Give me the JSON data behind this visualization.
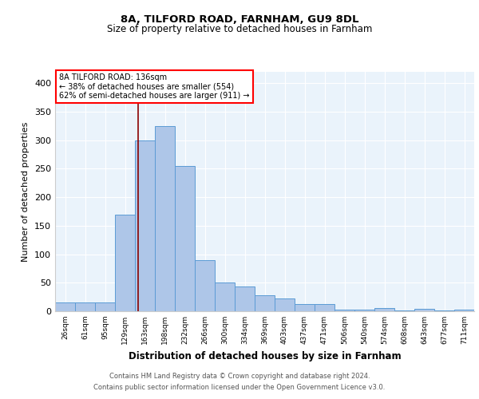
{
  "title1": "8A, TILFORD ROAD, FARNHAM, GU9 8DL",
  "title2": "Size of property relative to detached houses in Farnham",
  "xlabel": "Distribution of detached houses by size in Farnham",
  "ylabel": "Number of detached properties",
  "footnote1": "Contains HM Land Registry data © Crown copyright and database right 2024.",
  "footnote2": "Contains public sector information licensed under the Open Government Licence v3.0.",
  "bar_labels": [
    "26sqm",
    "61sqm",
    "95sqm",
    "129sqm",
    "163sqm",
    "198sqm",
    "232sqm",
    "266sqm",
    "300sqm",
    "334sqm",
    "369sqm",
    "403sqm",
    "437sqm",
    "471sqm",
    "506sqm",
    "540sqm",
    "574sqm",
    "608sqm",
    "643sqm",
    "677sqm",
    "711sqm"
  ],
  "bar_values": [
    15,
    15,
    15,
    170,
    300,
    325,
    255,
    90,
    50,
    43,
    28,
    22,
    12,
    12,
    3,
    3,
    5,
    2,
    4,
    2,
    3
  ],
  "bar_color": "#aec6e8",
  "bar_edge_color": "#5b9bd5",
  "annotation_line1": "8A TILFORD ROAD: 136sqm",
  "annotation_line2": "← 38% of detached houses are smaller (554)",
  "annotation_line3": "62% of semi-detached houses are larger (911) →",
  "red_line_x": 3.67,
  "ylim": [
    0,
    420
  ],
  "yticks": [
    0,
    50,
    100,
    150,
    200,
    250,
    300,
    350,
    400
  ],
  "bg_color": "#eaf3fb",
  "plot_bg": "#eaf3fb"
}
